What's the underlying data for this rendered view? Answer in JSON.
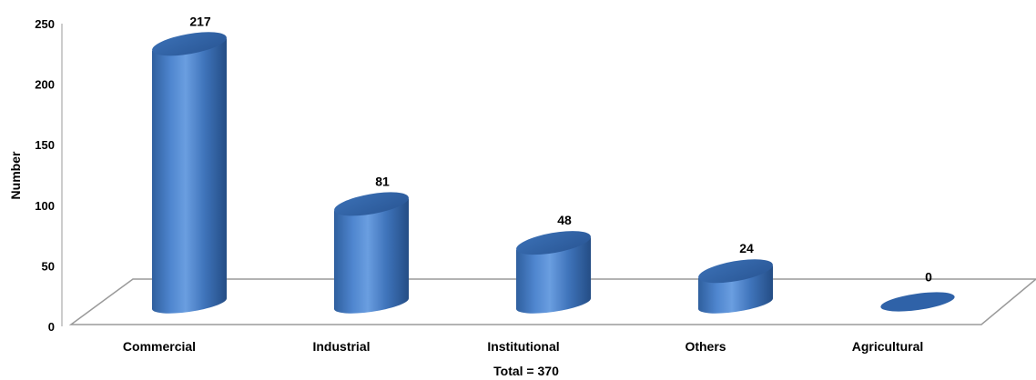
{
  "chart_data": {
    "type": "bar",
    "categories": [
      "Commercial",
      "Industrial",
      "Institutional",
      "Others",
      "Agricultural"
    ],
    "values": [
      217,
      81,
      48,
      24,
      0
    ],
    "ylabel": "Number",
    "xlabel": "Total = 370",
    "ylim": [
      0,
      250
    ],
    "yticks": [
      0,
      50,
      100,
      150,
      200,
      250
    ],
    "bar_color": "#4a7fc4",
    "grid": false,
    "legend": "none",
    "style": "3d-cylinder"
  }
}
